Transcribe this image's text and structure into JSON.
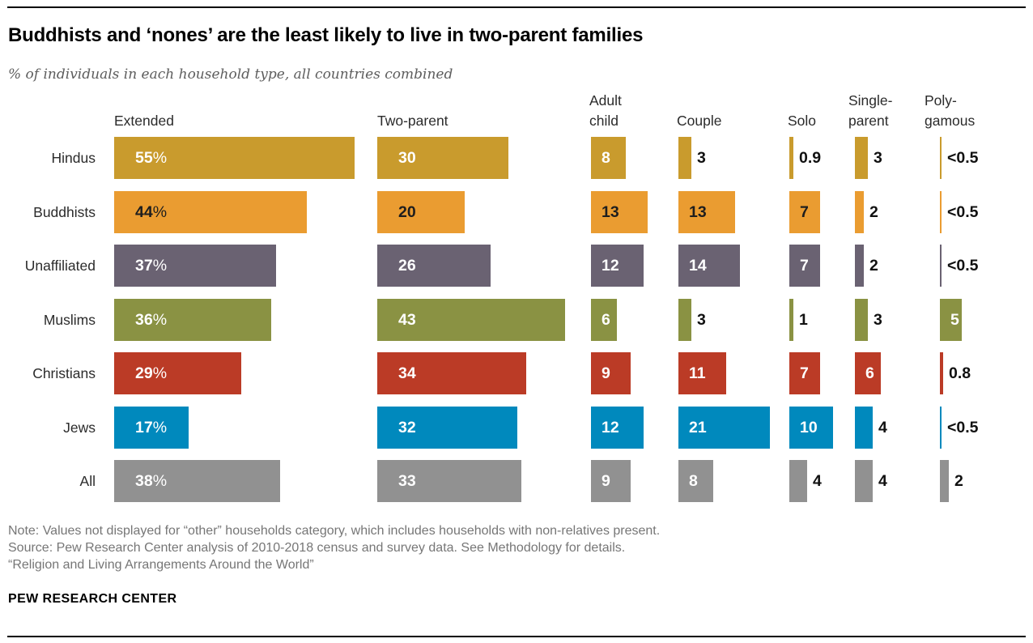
{
  "header": {
    "title": "Buddhists and ‘nones’ are the least likely to live in two-parent families",
    "subtitle": "% of individuals in each household type, all countries combined"
  },
  "chart_data": {
    "type": "bar",
    "orientation": "horizontal",
    "unit": "%",
    "title": "Buddhists and ‘nones’ are the least likely to live in two-parent families",
    "subtitle": "% of individuals in each household type, all countries combined",
    "value_axis": {
      "min": 0,
      "max": 55,
      "gridlines": false,
      "axis_shown": false
    },
    "legend_position": "none",
    "columns": [
      {
        "label": "Extended"
      },
      {
        "label": "Two-parent"
      },
      {
        "label": "Adult\nchild"
      },
      {
        "label": "Couple"
      },
      {
        "label": "Solo"
      },
      {
        "label": "Single-\nparent"
      },
      {
        "label": "Poly-\ngamous"
      }
    ],
    "rows": [
      {
        "label": "Hindus",
        "color": "#C99B2D",
        "inside_label_color": "#ffffff",
        "values": [
          55,
          30,
          8,
          3,
          0.9,
          3,
          0.4
        ],
        "displays": [
          "55%",
          "30",
          "8",
          "3",
          "0.9",
          "3",
          "<0.5"
        ]
      },
      {
        "label": "Buddhists",
        "color": "#EA9C31",
        "inside_label_color": "#1e1e1e",
        "values": [
          44,
          20,
          13,
          13,
          7,
          2,
          0.4
        ],
        "displays": [
          "44%",
          "20",
          "13",
          "13",
          "7",
          "2",
          "<0.5"
        ]
      },
      {
        "label": "Unaffiliated",
        "color": "#6A6272",
        "inside_label_color": "#ffffff",
        "values": [
          37,
          26,
          12,
          14,
          7,
          2,
          0.4
        ],
        "displays": [
          "37%",
          "26",
          "12",
          "14",
          "7",
          "2",
          "<0.5"
        ]
      },
      {
        "label": "Muslims",
        "color": "#8A9243",
        "inside_label_color": "#ffffff",
        "values": [
          36,
          43,
          6,
          3,
          1,
          3,
          5
        ],
        "displays": [
          "36%",
          "43",
          "6",
          "3",
          "1",
          "3",
          "5"
        ]
      },
      {
        "label": "Christians",
        "color": "#BB3B26",
        "inside_label_color": "#ffffff",
        "values": [
          29,
          34,
          9,
          11,
          7,
          6,
          0.8
        ],
        "displays": [
          "29%",
          "34",
          "9",
          "11",
          "7",
          "6",
          "0.8"
        ]
      },
      {
        "label": "Jews",
        "color": "#0089BD",
        "inside_label_color": "#ffffff",
        "values": [
          17,
          32,
          12,
          21,
          10,
          4,
          0.4
        ],
        "displays": [
          "17%",
          "32",
          "12",
          "21",
          "10",
          "4",
          "<0.5"
        ]
      },
      {
        "label": "All",
        "color": "#919191",
        "inside_label_color": "#ffffff",
        "values": [
          38,
          33,
          9,
          8,
          4,
          4,
          2
        ],
        "displays": [
          "38%",
          "33",
          "9",
          "8",
          "4",
          "4",
          "2"
        ]
      }
    ],
    "outside_label_color": "#111111"
  },
  "footer": {
    "note": "Note: Values not displayed for “other” households category, which includes households with non-relatives present.",
    "source": "Source: Pew Research Center analysis of 2010-2018 census and survey data. See Methodology for details.",
    "report": "“Religion and Living Arrangements Around the World”",
    "brand": "PEW RESEARCH CENTER"
  }
}
